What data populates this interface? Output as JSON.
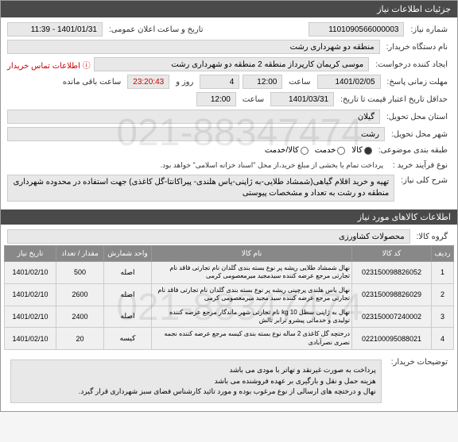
{
  "header": {
    "title": "جزئیات اطلاعات نیاز"
  },
  "fields": {
    "needNumber": {
      "label": "شماره نیاز:",
      "value": "1101090566000003"
    },
    "announceDate": {
      "label": "تاریخ و ساعت اعلان عمومی:",
      "value": "1401/01/31 - 11:39"
    },
    "orgName": {
      "label": "نام دستگاه خریدار:",
      "value": "منطقه دو شهرداری رشت"
    },
    "requester": {
      "label": "ایجاد کننده درخواست:",
      "value": "موسی کریمان کارپرداز منطقه 2 منطقه دو شهرداری رشت"
    },
    "contactInfo": {
      "label": "اطلاعات تماس خریدار",
      "icon": "info"
    },
    "deadline": {
      "label": "مهلت زمانی پاسخ:",
      "date": "1401/02/05",
      "timeLabel": "ساعت",
      "time": "12:00",
      "remainLabel": "روز و",
      "remainDays": "4",
      "remainTime": "23:20:43",
      "remainSuffix": "ساعت باقی مانده"
    },
    "maxValidity": {
      "label": "حداقل تاریخ اعتبار قیمت تا تاریخ:",
      "date": "1401/03/31",
      "timeLabel": "ساعت",
      "time": "12:00"
    },
    "province": {
      "label": "استان محل تحویل:",
      "value": "گیلان"
    },
    "city": {
      "label": "شهر محل تحویل:",
      "value": "رشت"
    },
    "category": {
      "label": "طبقه بندی موضوعی:",
      "options": [
        "کالا",
        "خدمت",
        "کالا/خدمت"
      ],
      "selected": 0
    },
    "processType": {
      "label": "نوع فرآیند خرید :",
      "note": "پرداخت تمام یا بخشی از مبلغ خرید،از محل \"اسناد خزانه اسلامی\" خواهد بود."
    }
  },
  "generalDesc": {
    "label": "شرح کلی نیاز:",
    "text": "تهیه و خرید اقلام گیاهی(شمشاد طلایی-به ژاپنی-یاس هلندی- پیراکانتا-گل کاغذی) جهت استفاده در محدوده شهرداری منطقه دو رشت به تعداد و مشخصات پیوستی"
  },
  "itemsSection": {
    "title": "اطلاعات کالاهای مورد نیاز"
  },
  "group": {
    "label": "گروه کالا:",
    "value": "محصولات کشاورزی"
  },
  "table": {
    "headers": [
      "ردیف",
      "کد کالا",
      "نام کالا",
      "واحد شمارش",
      "مقدار / تعداد",
      "تاریخ نیاز"
    ],
    "rows": [
      {
        "num": "1",
        "code": "023150098826052",
        "name": "نهال شمشاد طلایی ریشه پر نوع بسته بندی گلدان نام تجارتی فاقد نام تجارتی مرجع عرضه کننده سیدمجید میرمعصومی کرمی",
        "unit": "اصله",
        "qty": "500",
        "date": "1401/02/10"
      },
      {
        "num": "2",
        "code": "023150098826029",
        "name": "نهال یاس هلندی پرچینی ریشه پر نوع بسته بندی گلدان نام تجارتی فاقد نام تجارتی مرجع عرضه کننده سید مجید میرمعصومی کرمی",
        "unit": "اصله",
        "qty": "2600",
        "date": "1401/02/10"
      },
      {
        "num": "3",
        "code": "023150007240002",
        "name": "نهال به ژاپنی سطل 10 kg نام تجارتی شهر ماندگار مرجع عرضه کننده تولیدی و خدماتی پیشرو ترابر تالش",
        "unit": "اصله",
        "qty": "2400",
        "date": "1401/02/10"
      },
      {
        "num": "4",
        "code": "022100095088021",
        "name": "درختچه گل کاغذی 2 ساله نوع بسته بندی کیسه مرجع عرضه کننده نجمه نصری نصرآبادی",
        "unit": "کیسه",
        "qty": "20",
        "date": "1401/02/10"
      }
    ]
  },
  "buyerNote": {
    "label": "توضیحات خریدار:",
    "text": "پرداخت به صورت غیرنقد و تهاتر با مودی می باشد\nهزینه حمل و نقل و بارگیری بر عهده فروشنده می باشد\nنهال و درختچه های ارسالی از نوع مرغوب بوده و مورد تائید کارشناس فضای سبز شهرداری قرار گیرد."
  },
  "watermark": "021-88347474"
}
